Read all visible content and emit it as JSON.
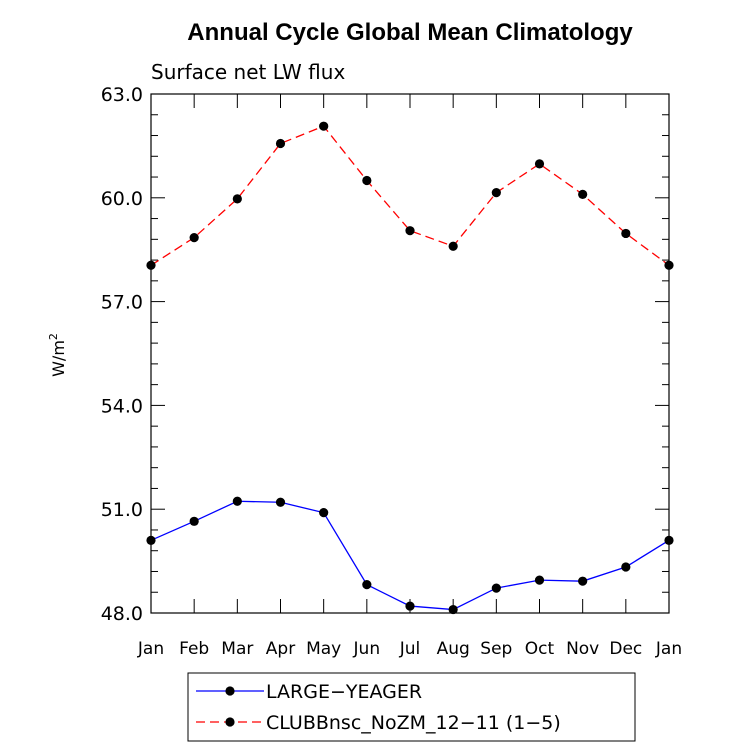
{
  "chart_data": {
    "type": "line",
    "title": "Annual Cycle Global Mean Climatology",
    "subtitle": "Surface net LW flux",
    "ylabel": "W/m",
    "ylabel_superscript": "2",
    "ylim": [
      48.0,
      63.0
    ],
    "yticks": [
      "48.0",
      "51.0",
      "54.0",
      "57.0",
      "60.0",
      "63.0"
    ],
    "ytick_values": [
      48,
      51,
      54,
      57,
      60,
      63
    ],
    "categories": [
      "Jan",
      "Feb",
      "Mar",
      "Apr",
      "May",
      "Jun",
      "Jul",
      "Aug",
      "Sep",
      "Oct",
      "Nov",
      "Dec",
      "Jan"
    ],
    "grid": false,
    "legend_position": "bottom",
    "series": [
      {
        "name": "LARGE−YEAGER",
        "color": "#0000ff",
        "dash": "solid",
        "marker": "filled-circle",
        "values": [
          50.1,
          50.65,
          51.23,
          51.2,
          50.9,
          48.82,
          48.2,
          48.1,
          48.72,
          48.95,
          48.92,
          49.33,
          50.1
        ]
      },
      {
        "name": "CLUBBnsc_NoZM_12−11 (1−5)",
        "color": "#ff0000",
        "dash": "dashed",
        "marker": "filled-circle",
        "values": [
          58.05,
          58.85,
          59.97,
          61.57,
          62.07,
          60.5,
          59.05,
          58.6,
          60.15,
          60.98,
          60.1,
          58.97,
          58.05
        ]
      }
    ]
  }
}
